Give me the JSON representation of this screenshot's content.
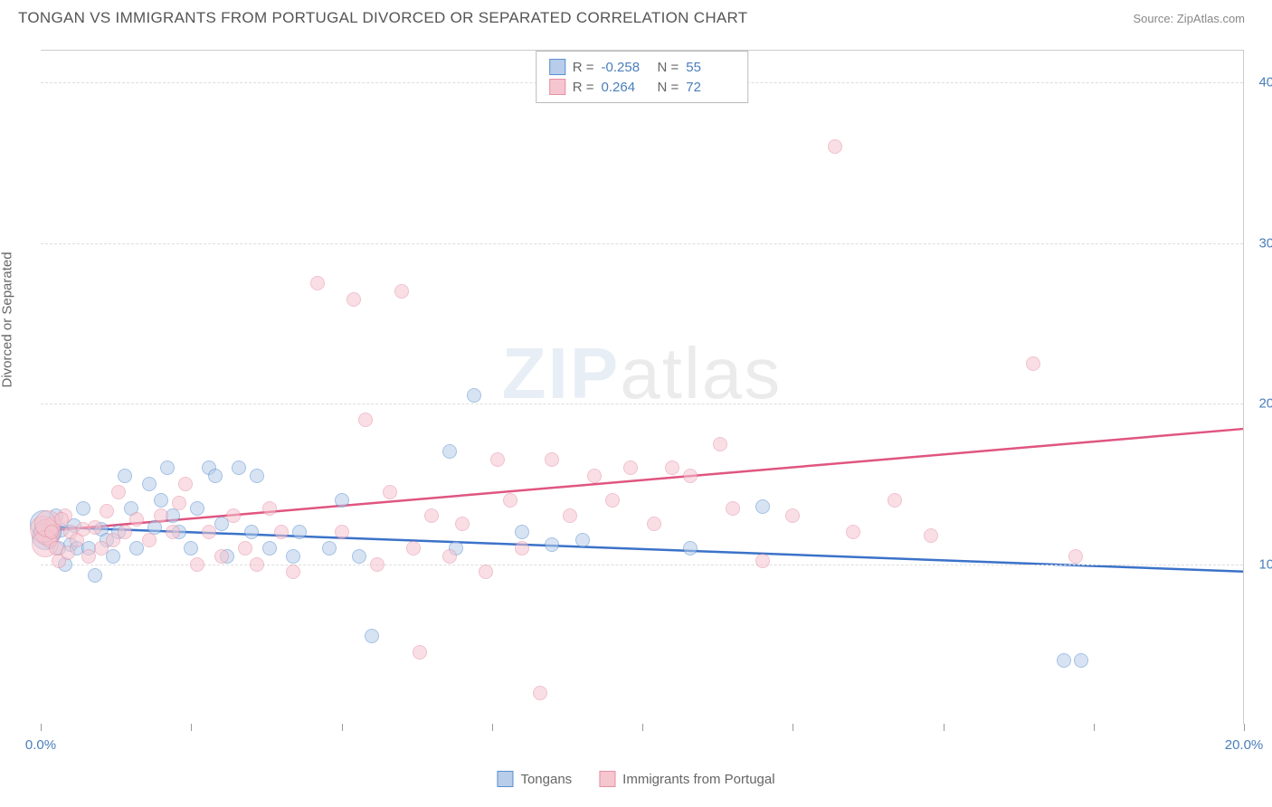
{
  "header": {
    "title": "TONGAN VS IMMIGRANTS FROM PORTUGAL DIVORCED OR SEPARATED CORRELATION CHART",
    "source": "Source: ZipAtlas.com"
  },
  "chart": {
    "type": "scatter",
    "y_label": "Divorced or Separated",
    "xlim": [
      0,
      20
    ],
    "ylim": [
      0,
      42
    ],
    "y_ticks": [
      10,
      20,
      30,
      40
    ],
    "y_tick_labels": [
      "10.0%",
      "20.0%",
      "30.0%",
      "40.0%"
    ],
    "x_ticks": [
      0,
      2.5,
      5,
      7.5,
      10,
      12.5,
      15,
      17.5,
      20
    ],
    "x_tick_labels_visible": {
      "0": "0.0%",
      "20": "20.0%"
    },
    "background_color": "#ffffff",
    "grid_color": "#dddddd",
    "watermark": {
      "prefix": "ZIP",
      "suffix": "atlas"
    },
    "legend_top": {
      "rows": [
        {
          "swatch_fill": "#b7cde9",
          "swatch_border": "#5b8fd0",
          "r_label": "R =",
          "r_value": "-0.258",
          "n_label": "N =",
          "n_value": "55"
        },
        {
          "swatch_fill": "#f5c6d0",
          "swatch_border": "#e68fa5",
          "r_label": "R =",
          "r_value": "0.264",
          "n_label": "N =",
          "n_value": "72"
        }
      ]
    },
    "legend_bottom": [
      {
        "swatch_fill": "#b7cde9",
        "swatch_border": "#5b8fd0",
        "label": "Tongans"
      },
      {
        "swatch_fill": "#f5c6d0",
        "swatch_border": "#e68fa5",
        "label": "Immigrants from Portugal"
      }
    ],
    "series": [
      {
        "name": "Tongans",
        "color_fill": "#b7cde9",
        "color_border": "#5b8fd0",
        "trend": {
          "y_start": 12.3,
          "y_end": 9.5,
          "stroke": "#3b72c9",
          "width": 2.5
        },
        "points": [
          [
            0.1,
            12.0
          ],
          [
            0.15,
            11.4
          ],
          [
            0.2,
            12.3
          ],
          [
            0.25,
            13.0
          ],
          [
            0.3,
            11.0
          ],
          [
            0.35,
            12.1
          ],
          [
            0.4,
            10.0
          ],
          [
            0.5,
            11.2
          ],
          [
            0.55,
            12.4
          ],
          [
            0.6,
            11.0
          ],
          [
            0.7,
            13.5
          ],
          [
            0.8,
            11.0
          ],
          [
            0.9,
            9.3
          ],
          [
            1.0,
            12.2
          ],
          [
            1.1,
            11.5
          ],
          [
            1.2,
            10.5
          ],
          [
            1.3,
            12.0
          ],
          [
            1.4,
            15.5
          ],
          [
            1.5,
            13.5
          ],
          [
            1.6,
            11.0
          ],
          [
            1.8,
            15.0
          ],
          [
            1.9,
            12.3
          ],
          [
            2.0,
            14.0
          ],
          [
            2.1,
            16.0
          ],
          [
            2.2,
            13.0
          ],
          [
            2.3,
            12.0
          ],
          [
            2.5,
            11.0
          ],
          [
            2.6,
            13.5
          ],
          [
            2.8,
            16.0
          ],
          [
            2.9,
            15.5
          ],
          [
            3.0,
            12.5
          ],
          [
            3.1,
            10.5
          ],
          [
            3.3,
            16.0
          ],
          [
            3.5,
            12.0
          ],
          [
            3.6,
            15.5
          ],
          [
            3.8,
            11.0
          ],
          [
            4.2,
            10.5
          ],
          [
            4.3,
            12.0
          ],
          [
            4.8,
            11.0
          ],
          [
            5.0,
            14.0
          ],
          [
            5.3,
            10.5
          ],
          [
            5.5,
            5.5
          ],
          [
            6.8,
            17.0
          ],
          [
            6.9,
            11.0
          ],
          [
            7.2,
            20.5
          ],
          [
            8.0,
            12.0
          ],
          [
            8.5,
            11.2
          ],
          [
            9.0,
            11.5
          ],
          [
            10.8,
            11.0
          ],
          [
            12.0,
            13.6
          ],
          [
            17.0,
            4.0
          ],
          [
            17.3,
            4.0
          ],
          [
            0.05,
            12.5
          ],
          [
            0.08,
            11.7
          ],
          [
            0.12,
            12.0
          ]
        ]
      },
      {
        "name": "Immigrants from Portugal",
        "color_fill": "#f5c6d0",
        "color_border": "#e68fa5",
        "trend": {
          "y_start": 12.0,
          "y_end": 18.4,
          "stroke": "#e05580",
          "width": 2.5
        },
        "points": [
          [
            0.1,
            12.0
          ],
          [
            0.15,
            11.5
          ],
          [
            0.2,
            12.5
          ],
          [
            0.3,
            10.2
          ],
          [
            0.4,
            13.0
          ],
          [
            0.5,
            12.0
          ],
          [
            0.6,
            11.5
          ],
          [
            0.7,
            12.2
          ],
          [
            0.8,
            10.5
          ],
          [
            0.9,
            12.3
          ],
          [
            1.0,
            11.0
          ],
          [
            1.1,
            13.3
          ],
          [
            1.2,
            11.5
          ],
          [
            1.3,
            14.5
          ],
          [
            1.4,
            12.0
          ],
          [
            1.6,
            12.8
          ],
          [
            1.8,
            11.5
          ],
          [
            2.0,
            13.0
          ],
          [
            2.2,
            12.0
          ],
          [
            2.3,
            13.8
          ],
          [
            2.4,
            15.0
          ],
          [
            2.6,
            10.0
          ],
          [
            2.8,
            12.0
          ],
          [
            3.0,
            10.5
          ],
          [
            3.2,
            13.0
          ],
          [
            3.4,
            11.0
          ],
          [
            3.6,
            10.0
          ],
          [
            3.8,
            13.5
          ],
          [
            4.0,
            12.0
          ],
          [
            4.2,
            9.5
          ],
          [
            4.6,
            27.5
          ],
          [
            5.0,
            12.0
          ],
          [
            5.2,
            26.5
          ],
          [
            5.4,
            19.0
          ],
          [
            5.6,
            10.0
          ],
          [
            5.8,
            14.5
          ],
          [
            6.0,
            27.0
          ],
          [
            6.2,
            11.0
          ],
          [
            6.3,
            4.5
          ],
          [
            6.5,
            13.0
          ],
          [
            6.8,
            10.5
          ],
          [
            7.0,
            12.5
          ],
          [
            7.4,
            9.5
          ],
          [
            7.6,
            16.5
          ],
          [
            7.8,
            14.0
          ],
          [
            8.0,
            11.0
          ],
          [
            8.3,
            2.0
          ],
          [
            8.5,
            16.5
          ],
          [
            8.8,
            13.0
          ],
          [
            9.2,
            15.5
          ],
          [
            9.5,
            14.0
          ],
          [
            9.8,
            16.0
          ],
          [
            10.2,
            12.5
          ],
          [
            10.5,
            16.0
          ],
          [
            10.8,
            15.5
          ],
          [
            11.3,
            17.5
          ],
          [
            11.5,
            13.5
          ],
          [
            12.0,
            10.2
          ],
          [
            12.5,
            13.0
          ],
          [
            13.2,
            36.0
          ],
          [
            13.5,
            12.0
          ],
          [
            14.2,
            14.0
          ],
          [
            14.8,
            11.8
          ],
          [
            16.5,
            22.5
          ],
          [
            17.2,
            10.5
          ],
          [
            0.05,
            12.2
          ],
          [
            0.08,
            11.3
          ],
          [
            0.12,
            12.5
          ],
          [
            0.18,
            12.0
          ],
          [
            0.25,
            11.0
          ],
          [
            0.35,
            12.8
          ],
          [
            0.45,
            10.7
          ]
        ]
      }
    ]
  }
}
